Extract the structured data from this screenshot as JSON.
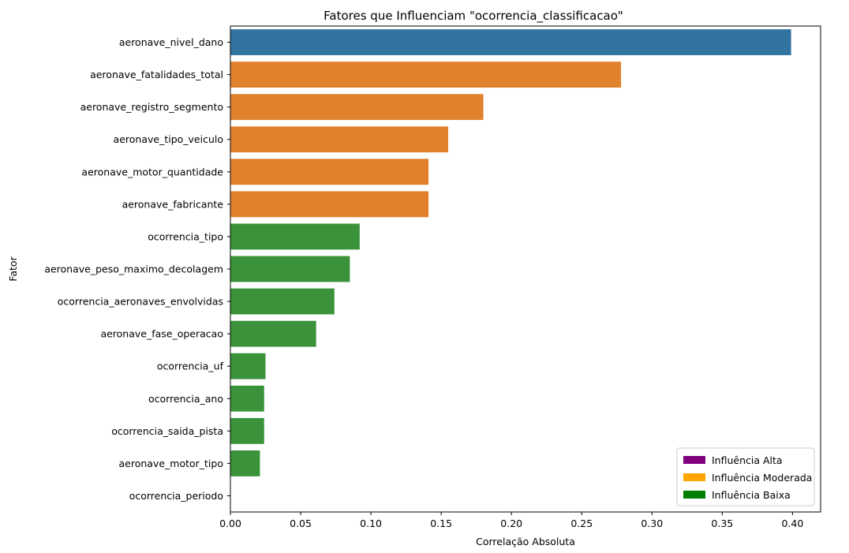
{
  "chart_data": {
    "type": "bar",
    "orientation": "horizontal",
    "title": "Fatores que Influenciam \"ocorrencia_classificacao\"",
    "xlabel": "Correlação Absoluta",
    "ylabel": "Fator",
    "xlim": [
      0,
      0.42
    ],
    "xticks": [
      "0.00",
      "0.05",
      "0.10",
      "0.15",
      "0.20",
      "0.25",
      "0.30",
      "0.35",
      "0.40"
    ],
    "grid": false,
    "categories": [
      "aeronave_nivel_dano",
      "aeronave_fatalidades_total",
      "aeronave_registro_segmento",
      "aeronave_tipo_veiculo",
      "aeronave_motor_quantidade",
      "aeronave_fabricante",
      "ocorrencia_tipo",
      "aeronave_peso_maximo_decolagem",
      "ocorrencia_aeronaves_envolvidas",
      "aeronave_fase_operacao",
      "ocorrencia_uf",
      "ocorrencia_ano",
      "ocorrencia_saida_pista",
      "aeronave_motor_tipo",
      "ocorrencia_periodo"
    ],
    "values": [
      0.399,
      0.278,
      0.18,
      0.155,
      0.141,
      0.141,
      0.092,
      0.085,
      0.074,
      0.061,
      0.025,
      0.024,
      0.024,
      0.021,
      0.0
    ],
    "bar_colors": [
      "#3274a1",
      "#e1812c",
      "#e1812c",
      "#e1812c",
      "#e1812c",
      "#e1812c",
      "#3a923a",
      "#3a923a",
      "#3a923a",
      "#3a923a",
      "#3a923a",
      "#3a923a",
      "#3a923a",
      "#3a923a",
      "#3a923a"
    ],
    "legend": {
      "placement": "lower-right",
      "entries": [
        {
          "label": "Influência Alta",
          "color": "#800080"
        },
        {
          "label": "Influência Moderada",
          "color": "#ffa500"
        },
        {
          "label": "Influência Baixa",
          "color": "#008000"
        }
      ]
    }
  }
}
